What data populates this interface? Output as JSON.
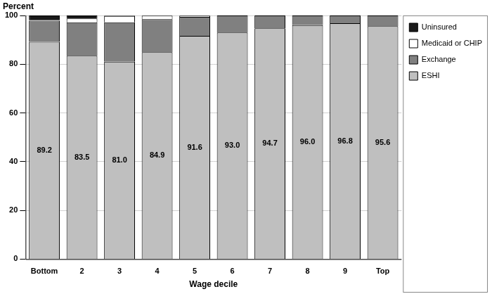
{
  "chart_data": {
    "type": "bar",
    "stacked": true,
    "ylabel": "Percent",
    "xlabel": "Wage decile",
    "categories": [
      "Bottom",
      "2",
      "3",
      "4",
      "5",
      "6",
      "7",
      "8",
      "9",
      "Top"
    ],
    "series": [
      {
        "name": "ESHI",
        "color": "#bfbfbf",
        "data_labels": true,
        "values": [
          89.2,
          83.5,
          81.0,
          84.9,
          91.6,
          93.0,
          94.7,
          96.0,
          96.8,
          95.6
        ]
      },
      {
        "name": "Exchange",
        "color": "#808080",
        "values": [
          8.6,
          13.7,
          16.2,
          13.6,
          7.8,
          7.0,
          5.3,
          4.0,
          3.2,
          4.4
        ]
      },
      {
        "name": "Medicaid or CHIP",
        "color": "#ffffff",
        "values": [
          0.4,
          1.6,
          2.6,
          1.4,
          0.5,
          0,
          0,
          0,
          0,
          0
        ]
      },
      {
        "name": "Uninsured",
        "color": "#1a1a1a",
        "values": [
          1.8,
          1.2,
          0.2,
          0.1,
          0.1,
          0,
          0,
          0,
          0,
          0
        ]
      }
    ],
    "ylim": [
      0,
      100
    ],
    "yticks": [
      0,
      20,
      40,
      60,
      80,
      100
    ],
    "grid": true,
    "legend": "top-right"
  }
}
